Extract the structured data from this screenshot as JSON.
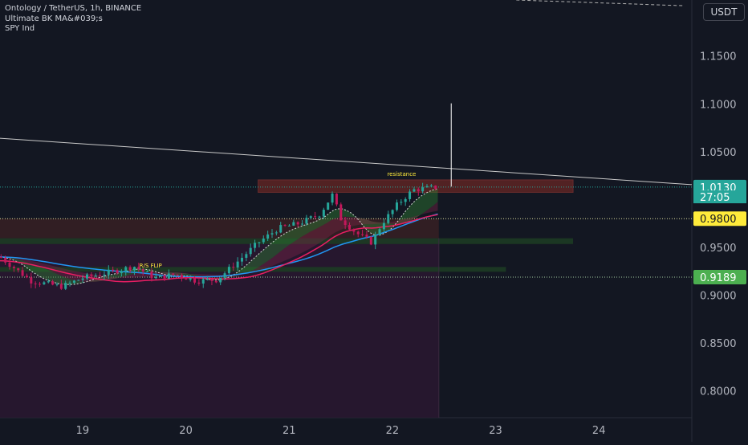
{
  "header": {
    "symbol_line": "Ontology / TetherUS, 1h, BINANCE",
    "indicator1": "Ultimate BK MA&#039;s",
    "indicator2": "SPY Ind"
  },
  "currency_button": "USDT",
  "colors": {
    "background": "#131722",
    "bull": "#26a69a",
    "bear": "#c2185b",
    "resistance_zone": "#5d2424",
    "purple_zone": "#2a1830",
    "last_price_label": "#26a69a",
    "yellow_label": "#ffeb3b",
    "green_label": "#4caf50"
  },
  "chart_data": {
    "type": "candlestick",
    "symbol": "Ontology / TetherUS",
    "interval": "1h",
    "exchange": "BINANCE",
    "x_tick_labels": [
      "19",
      "20",
      "21",
      "22",
      "23",
      "24"
    ],
    "x_tick_values": [
      19,
      20,
      21,
      22,
      23,
      24
    ],
    "x_range": [
      18.2,
      24.9
    ],
    "y_tick_labels": [
      "1.1500",
      "1.1000",
      "1.0500",
      "0.9500",
      "0.9000",
      "0.8500",
      "0.8000"
    ],
    "y_tick_values": [
      1.15,
      1.1,
      1.05,
      0.95,
      0.9,
      0.85,
      0.8
    ],
    "y_range": [
      0.772,
      1.2085
    ],
    "price_labels": [
      {
        "text": "1.0130",
        "value": 1.013,
        "color": "#26a69a",
        "text_color": "#ffffff"
      },
      {
        "text": "27:05",
        "value": 1.0028,
        "color": "#26a69a",
        "text_color": "#ffffff"
      },
      {
        "text": "0.9800",
        "value": 0.98,
        "color": "#ffeb3b",
        "text_color": "#131722"
      },
      {
        "text": "0.9189",
        "value": 0.9189,
        "color": "#4caf50",
        "text_color": "#ffffff"
      }
    ],
    "annotations": [
      {
        "text": "resistance",
        "x": 21.95,
        "y": 1.0245
      },
      {
        "text": "R/S FLIP",
        "x": 19.55,
        "y": 0.9288
      }
    ],
    "key_points": [
      {
        "x": 18.2,
        "close": 0.94
      },
      {
        "x": 18.5,
        "close": 0.915
      },
      {
        "x": 18.8,
        "close": 0.909
      },
      {
        "x": 19.0,
        "close": 0.918
      },
      {
        "x": 19.3,
        "close": 0.925
      },
      {
        "x": 19.5,
        "close": 0.93
      },
      {
        "x": 19.7,
        "close": 0.918
      },
      {
        "x": 19.9,
        "close": 0.922
      },
      {
        "x": 20.1,
        "close": 0.915
      },
      {
        "x": 20.3,
        "close": 0.916
      },
      {
        "x": 20.5,
        "close": 0.935
      },
      {
        "x": 20.7,
        "close": 0.955
      },
      {
        "x": 20.9,
        "close": 0.97
      },
      {
        "x": 21.1,
        "close": 0.975
      },
      {
        "x": 21.3,
        "close": 0.985
      },
      {
        "x": 21.42,
        "close": 1.005
      },
      {
        "x": 21.5,
        "close": 0.98
      },
      {
        "x": 21.65,
        "close": 0.965
      },
      {
        "x": 21.8,
        "close": 0.955
      },
      {
        "x": 21.9,
        "close": 0.975
      },
      {
        "x": 22.05,
        "close": 0.995
      },
      {
        "x": 22.2,
        "close": 1.01
      },
      {
        "x": 22.35,
        "close": 1.012
      },
      {
        "x": 22.45,
        "close": 1.013
      }
    ]
  }
}
